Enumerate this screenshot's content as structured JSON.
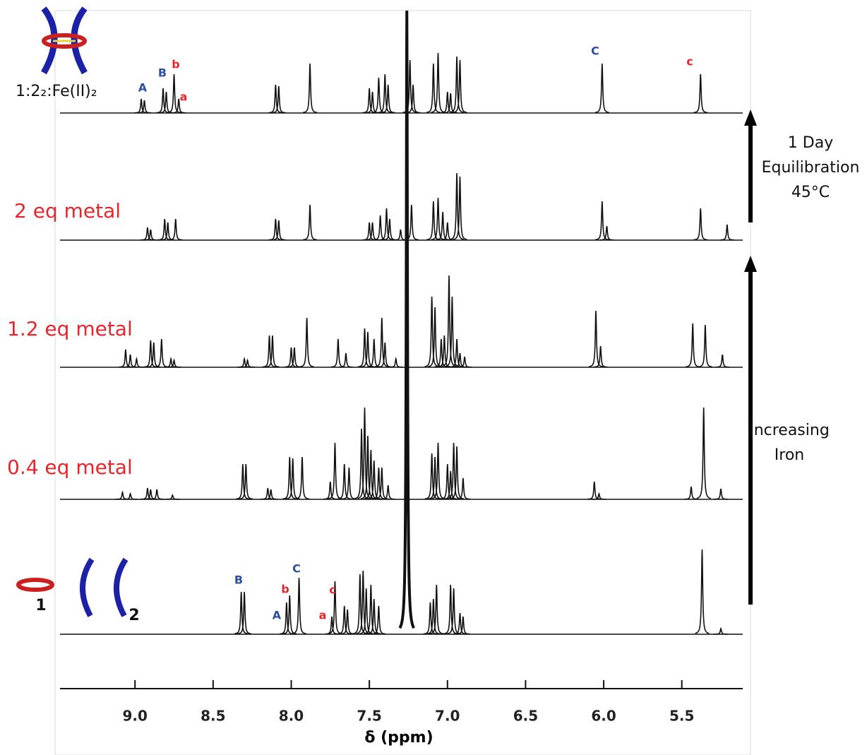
{
  "chart_data": {
    "type": "nmr",
    "x_label": "δ (ppm)",
    "xlim": [
      9.48,
      5.11
    ],
    "xticks": [
      {
        "value": 9,
        "label": "9.0"
      },
      8.5,
      {
        "value": 8,
        "label": "8.0"
      },
      7.5,
      {
        "value": 7,
        "label": "7.0"
      },
      6.5,
      {
        "value": 6,
        "label": "6.0"
      },
      5.5
    ],
    "line_color": "#111111",
    "series": [
      {
        "name": "1:2₂:Fe(II)₂",
        "name_color": "#111111",
        "x": [
          8.96,
          8.94,
          8.82,
          8.8,
          8.75,
          8.72,
          8.1,
          8.08,
          7.88,
          7.5,
          7.48,
          7.44,
          7.4,
          7.38,
          7.24,
          7.22,
          7.09,
          7.06,
          7.0,
          6.98,
          6.94,
          6.92,
          6.01,
          5.38
        ],
        "values": [
          20,
          18,
          35,
          30,
          55,
          20,
          40,
          38,
          70,
          35,
          30,
          50,
          55,
          40,
          75,
          40,
          70,
          85,
          30,
          28,
          80,
          75,
          70,
          55
        ],
        "peak_labels": [
          {
            "text": "A",
            "color": "#2e4fa0"
          },
          {
            "text": "B",
            "color": "#2e4fa0"
          },
          {
            "text": "b",
            "color": "#e8252a"
          },
          {
            "text": "a",
            "color": "#e8252a"
          },
          {
            "text": "C",
            "color": "#2e4fa0"
          },
          {
            "text": "c",
            "color": "#e8252a"
          }
        ]
      },
      {
        "name": "2 eq metal",
        "name_color": "#e8252a",
        "x": [
          8.92,
          8.9,
          8.81,
          8.79,
          8.74,
          8.1,
          8.08,
          7.88,
          7.5,
          7.48,
          7.43,
          7.39,
          7.37,
          7.3,
          7.23,
          7.09,
          7.06,
          7.03,
          7.0,
          6.94,
          6.92,
          6.01,
          5.98,
          5.38,
          5.21
        ],
        "values": [
          18,
          15,
          30,
          25,
          30,
          30,
          28,
          50,
          25,
          25,
          35,
          45,
          30,
          15,
          50,
          55,
          60,
          40,
          25,
          95,
          90,
          55,
          20,
          45,
          22
        ]
      },
      {
        "name": "1.2 eq metal",
        "name_color": "#e8252a",
        "x": [
          9.06,
          9.03,
          8.99,
          8.9,
          8.88,
          8.83,
          8.77,
          8.75,
          8.3,
          8.28,
          8.14,
          8.12,
          8.0,
          7.98,
          7.9,
          7.7,
          7.65,
          7.53,
          7.51,
          7.47,
          7.42,
          7.4,
          7.33,
          7.1,
          7.08,
          7.04,
          7.02,
          6.99,
          6.97,
          6.94,
          6.92,
          6.89,
          6.05,
          6.02,
          5.43,
          5.35,
          5.24
        ],
        "values": [
          25,
          18,
          12,
          38,
          35,
          40,
          12,
          10,
          12,
          10,
          45,
          45,
          28,
          28,
          70,
          40,
          20,
          55,
          50,
          40,
          70,
          35,
          12,
          100,
          85,
          40,
          45,
          130,
          100,
          40,
          20,
          15,
          80,
          30,
          62,
          60,
          18
        ]
      },
      {
        "name": "0.4 eq metal",
        "name_color": "#e8252a",
        "x": [
          9.08,
          9.03,
          8.92,
          8.9,
          8.86,
          8.76,
          8.31,
          8.29,
          8.15,
          8.13,
          8.01,
          7.99,
          7.93,
          7.75,
          7.72,
          7.66,
          7.63,
          7.55,
          7.53,
          7.51,
          7.49,
          7.47,
          7.44,
          7.42,
          7.38,
          7.1,
          7.08,
          7.06,
          7.0,
          6.98,
          6.96,
          6.94,
          6.9,
          6.06,
          6.03,
          5.44,
          5.36,
          5.25
        ],
        "values": [
          10,
          8,
          16,
          14,
          14,
          6,
          50,
          50,
          16,
          14,
          60,
          58,
          60,
          25,
          80,
          50,
          45,
          100,
          130,
          90,
          70,
          55,
          45,
          45,
          20,
          65,
          60,
          80,
          50,
          40,
          80,
          75,
          30,
          25,
          8,
          18,
          130,
          15
        ]
      },
      {
        "molecule_labels": [
          "1",
          "2"
        ],
        "x": [
          8.32,
          8.3,
          8.03,
          8.01,
          7.95,
          7.74,
          7.72,
          7.66,
          7.64,
          7.56,
          7.54,
          7.52,
          7.49,
          7.47,
          7.44,
          7.26,
          7.11,
          7.09,
          7.07,
          6.98,
          6.96,
          6.92,
          6.9,
          5.37,
          5.25
        ],
        "values": [
          60,
          60,
          45,
          55,
          80,
          25,
          75,
          40,
          35,
          85,
          90,
          65,
          70,
          50,
          40,
          883,
          45,
          50,
          70,
          70,
          65,
          30,
          25,
          120,
          8
        ],
        "peak_labels": [
          {
            "text": "B",
            "color": "#2e4fa0"
          },
          {
            "text": "A",
            "color": "#2e4fa0"
          },
          {
            "text": "b",
            "color": "#e8252a"
          },
          {
            "text": "C",
            "color": "#2e4fa0"
          },
          {
            "text": "a",
            "color": "#e8252a"
          },
          {
            "text": "c",
            "color": "#e8252a"
          }
        ]
      }
    ],
    "arrows": [
      {
        "lines": [
          "1 Day",
          "Equilibration",
          "45°C"
        ]
      },
      {
        "lines": [
          "Increasing",
          "Iron"
        ]
      }
    ]
  }
}
